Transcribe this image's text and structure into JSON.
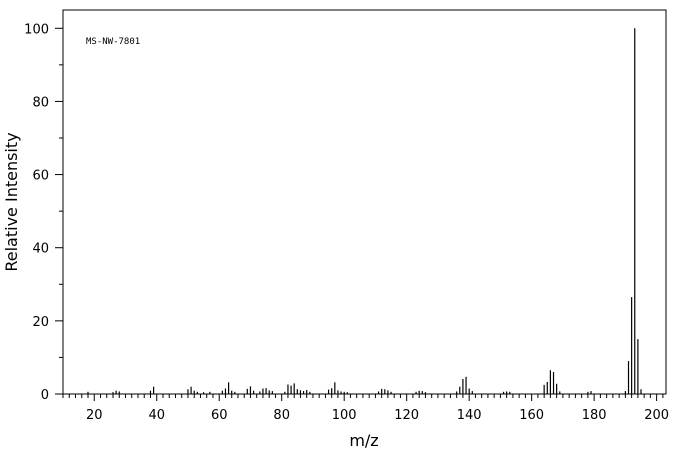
{
  "chart_data": {
    "type": "bar",
    "title": "",
    "annotation": "MS-NW-7801",
    "xlabel": "m/z",
    "ylabel": "Relative Intensity",
    "xlim": [
      10,
      203
    ],
    "ylim": [
      0,
      105
    ],
    "x_ticks": [
      20,
      40,
      60,
      80,
      100,
      120,
      140,
      160,
      180,
      200
    ],
    "y_ticks": [
      0,
      20,
      40,
      60,
      80,
      100
    ],
    "x_minor_step": 2,
    "y_minor_step": 10,
    "grid": false,
    "legend": "none",
    "colors": {
      "bars": "#000000",
      "axes": "#000000",
      "background": "#ffffff"
    },
    "peaks": [
      [
        18,
        0.6
      ],
      [
        26,
        0.5
      ],
      [
        27,
        0.9
      ],
      [
        28,
        0.7
      ],
      [
        38,
        0.9
      ],
      [
        39,
        2.0
      ],
      [
        50,
        1.3
      ],
      [
        51,
        2.0
      ],
      [
        52,
        0.9
      ],
      [
        53,
        0.6
      ],
      [
        55,
        0.5
      ],
      [
        57,
        0.6
      ],
      [
        61,
        0.9
      ],
      [
        62,
        1.5
      ],
      [
        63,
        3.2
      ],
      [
        64,
        0.9
      ],
      [
        65,
        0.6
      ],
      [
        69,
        1.4
      ],
      [
        70,
        2.1
      ],
      [
        71,
        0.9
      ],
      [
        73,
        0.7
      ],
      [
        74,
        1.5
      ],
      [
        75,
        1.6
      ],
      [
        76,
        1.0
      ],
      [
        77,
        0.8
      ],
      [
        81,
        0.6
      ],
      [
        82,
        2.6
      ],
      [
        83,
        2.3
      ],
      [
        84,
        2.9
      ],
      [
        85,
        1.3
      ],
      [
        86,
        1.0
      ],
      [
        87,
        0.8
      ],
      [
        88,
        1.1
      ],
      [
        89,
        0.6
      ],
      [
        95,
        1.2
      ],
      [
        96,
        1.6
      ],
      [
        97,
        3.2
      ],
      [
        98,
        1.0
      ],
      [
        99,
        0.7
      ],
      [
        100,
        0.6
      ],
      [
        101,
        0.5
      ],
      [
        111,
        0.7
      ],
      [
        112,
        1.4
      ],
      [
        113,
        1.3
      ],
      [
        114,
        1.0
      ],
      [
        115,
        0.6
      ],
      [
        123,
        0.6
      ],
      [
        124,
        0.9
      ],
      [
        125,
        0.8
      ],
      [
        126,
        0.5
      ],
      [
        136,
        0.7
      ],
      [
        137,
        2.0
      ],
      [
        138,
        4.1
      ],
      [
        139,
        4.7
      ],
      [
        140,
        1.5
      ],
      [
        141,
        0.8
      ],
      [
        151,
        0.6
      ],
      [
        152,
        0.7
      ],
      [
        153,
        0.6
      ],
      [
        164,
        2.5
      ],
      [
        165,
        3.3
      ],
      [
        166,
        6.5
      ],
      [
        167,
        6.0
      ],
      [
        168,
        2.8
      ],
      [
        169,
        0.7
      ],
      [
        178,
        0.6
      ],
      [
        179,
        0.8
      ],
      [
        190,
        0.8
      ],
      [
        191,
        9.0
      ],
      [
        192,
        26.5
      ],
      [
        193,
        100
      ],
      [
        194,
        15.0
      ],
      [
        195,
        1.3
      ]
    ]
  }
}
